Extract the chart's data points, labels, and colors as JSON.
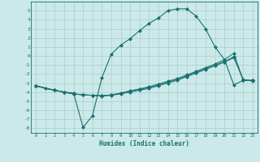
{
  "xlabel": "Humidex (Indice chaleur)",
  "background_color": "#cce9e9",
  "grid_color": "#aacccc",
  "line_color": "#1a7070",
  "xlim": [
    -0.5,
    23.5
  ],
  "ylim": [
    -8.5,
    6.0
  ],
  "x_ticks": [
    0,
    1,
    2,
    3,
    4,
    5,
    6,
    7,
    8,
    9,
    10,
    11,
    12,
    13,
    14,
    15,
    16,
    17,
    18,
    19,
    20,
    21,
    22,
    23
  ],
  "y_ticks": [
    -8,
    -7,
    -6,
    -5,
    -4,
    -3,
    -2,
    -1,
    0,
    1,
    2,
    3,
    4,
    5
  ],
  "line1_x": [
    0,
    1,
    2,
    3,
    4,
    5,
    6,
    7,
    8,
    9,
    10,
    11,
    12,
    13,
    14,
    15,
    16,
    17,
    18,
    19,
    20,
    21,
    22,
    23
  ],
  "line1_y": [
    -3.3,
    -3.6,
    -3.8,
    -4.0,
    -4.1,
    -7.9,
    -6.6,
    -2.4,
    0.2,
    1.2,
    1.9,
    2.8,
    3.6,
    4.2,
    5.0,
    5.2,
    5.2,
    4.4,
    3.0,
    1.0,
    -0.4,
    -3.2,
    -2.7,
    -2.7
  ],
  "line2_x": [
    0,
    2,
    3,
    4,
    5,
    6,
    7,
    8,
    9,
    10,
    11,
    12,
    13,
    14,
    15,
    16,
    17,
    18,
    19,
    20,
    21,
    22,
    23
  ],
  "line2_y": [
    -3.3,
    -3.8,
    -4.0,
    -4.2,
    -4.3,
    -4.35,
    -4.4,
    -4.3,
    -4.15,
    -3.9,
    -3.7,
    -3.5,
    -3.2,
    -2.9,
    -2.6,
    -2.2,
    -1.8,
    -1.4,
    -1.0,
    -0.6,
    -0.1,
    -2.7,
    -2.7
  ],
  "line3_x": [
    0,
    2,
    3,
    4,
    5,
    6,
    7,
    8,
    9,
    10,
    11,
    12,
    13,
    14,
    15,
    16,
    17,
    18,
    19,
    20,
    21,
    22,
    23
  ],
  "line3_y": [
    -3.3,
    -3.8,
    -4.0,
    -4.2,
    -4.3,
    -4.35,
    -4.4,
    -4.3,
    -4.1,
    -3.85,
    -3.65,
    -3.4,
    -3.1,
    -2.8,
    -2.5,
    -2.1,
    -1.7,
    -1.3,
    -0.9,
    -0.4,
    0.3,
    -2.7,
    -2.7
  ],
  "line4_x": [
    0,
    2,
    3,
    4,
    5,
    6,
    7,
    8,
    9,
    10,
    11,
    12,
    13,
    14,
    15,
    16,
    17,
    18,
    19,
    20,
    21,
    22,
    23
  ],
  "line4_y": [
    -3.3,
    -3.8,
    -4.0,
    -4.2,
    -4.3,
    -4.35,
    -4.45,
    -4.35,
    -4.2,
    -4.0,
    -3.8,
    -3.6,
    -3.3,
    -3.0,
    -2.7,
    -2.3,
    -1.9,
    -1.5,
    -1.1,
    -0.7,
    -0.2,
    -2.6,
    -2.8
  ]
}
